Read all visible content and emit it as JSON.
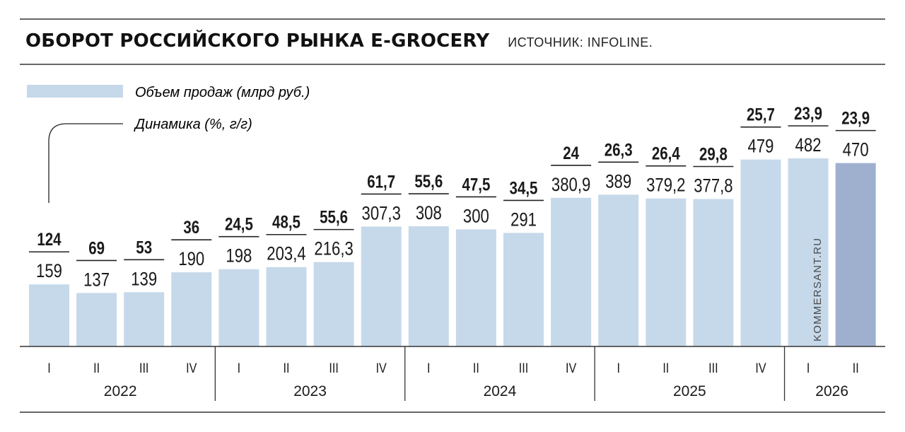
{
  "title": "ОБОРОТ РОССИЙСКОГО РЫНКА E-GROCERY",
  "source": "ИСТОЧНИК: INFOLINE.",
  "watermark": "KOMMERSANT.RU",
  "colors": {
    "bar": "#c6d9ea",
    "bar_highlight": "#9fb0cf",
    "text": "#1a1a1a",
    "rule": "#333333"
  },
  "chart_data": {
    "type": "bar",
    "legend": {
      "sales_label": "Объем продаж (млрд руб.)",
      "dynamics_label": "Динамика (%, г/г)"
    },
    "categories": [
      "I",
      "II",
      "III",
      "IV",
      "I",
      "II",
      "III",
      "IV",
      "I",
      "II",
      "III",
      "IV",
      "I",
      "II",
      "III",
      "IV",
      "I",
      "II"
    ],
    "years": [
      {
        "label": "2022",
        "count": 4
      },
      {
        "label": "2023",
        "count": 4
      },
      {
        "label": "2024",
        "count": 4
      },
      {
        "label": "2025",
        "count": 4
      },
      {
        "label": "2026",
        "count": 2
      }
    ],
    "series": [
      {
        "name": "Объем продаж (млрд руб.)",
        "values": [
          159,
          137,
          139,
          190,
          198,
          203.4,
          216.3,
          307.3,
          308,
          300,
          291,
          380.9,
          389,
          379.2,
          377.8,
          479,
          482,
          470
        ],
        "labels": [
          "159",
          "137",
          "139",
          "190",
          "198",
          "203,4",
          "216,3",
          "307,3",
          "308",
          "300",
          "291",
          "380,9",
          "389",
          "379,2",
          "377,8",
          "479",
          "482",
          "470"
        ]
      },
      {
        "name": "Динамика (%, г/г)",
        "values": [
          124,
          69,
          53,
          36,
          24.5,
          48.5,
          55.6,
          61.7,
          55.6,
          47.5,
          34.5,
          24,
          26.3,
          26.4,
          29.8,
          25.7,
          23.9,
          23.9
        ],
        "labels": [
          "124",
          "69",
          "53",
          "36",
          "24,5",
          "48,5",
          "55,6",
          "61,7",
          "55,6",
          "47,5",
          "34,5",
          "24",
          "26,3",
          "26,4",
          "29,8",
          "25,7",
          "23,9",
          "23,9"
        ]
      }
    ],
    "highlight_index": 17,
    "ylim": [
      0,
      482
    ]
  }
}
